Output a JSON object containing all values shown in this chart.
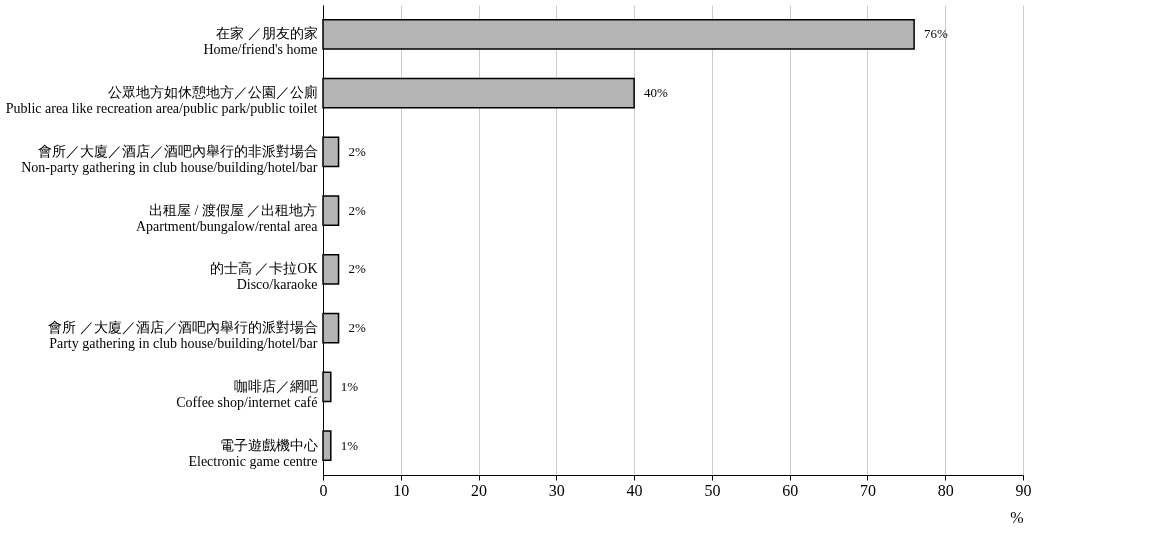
{
  "chart_data": {
    "type": "bar",
    "orientation": "horizontal",
    "categories": [
      "在家 ／朋友的家\nHome/friend's home",
      "公眾地方如休憩地方／公園／公廁\nPublic area like recreation area/public park/public toilet",
      "會所／大廈／酒店／酒吧內舉行的非派對場合\nNon-party gathering in club house/building/hotel/bar",
      "出租屋 / 渡假屋 ／出租地方\nApartment/bungalow/rental area",
      "的士高 ／卡拉OK\nDisco/karaoke",
      "會所 ／大廈／酒店／酒吧內舉行的派對場合\nParty gathering in club house/building/hotel/bar",
      "咖啡店／網吧\nCoffee shop/internet café",
      "電子遊戲機中心\nElectronic game centre"
    ],
    "values": [
      76,
      40,
      2,
      2,
      2,
      2,
      1,
      1
    ],
    "value_labels": [
      "76%",
      "40%",
      "2%",
      "2%",
      "2%",
      "2%",
      "1%",
      "1%"
    ],
    "color": "#b4b4b4",
    "xlim": [
      0,
      90
    ],
    "xticks": [
      0,
      10,
      20,
      30,
      40,
      50,
      60,
      70,
      80,
      90
    ],
    "xlabel": "%",
    "grid": "x"
  }
}
